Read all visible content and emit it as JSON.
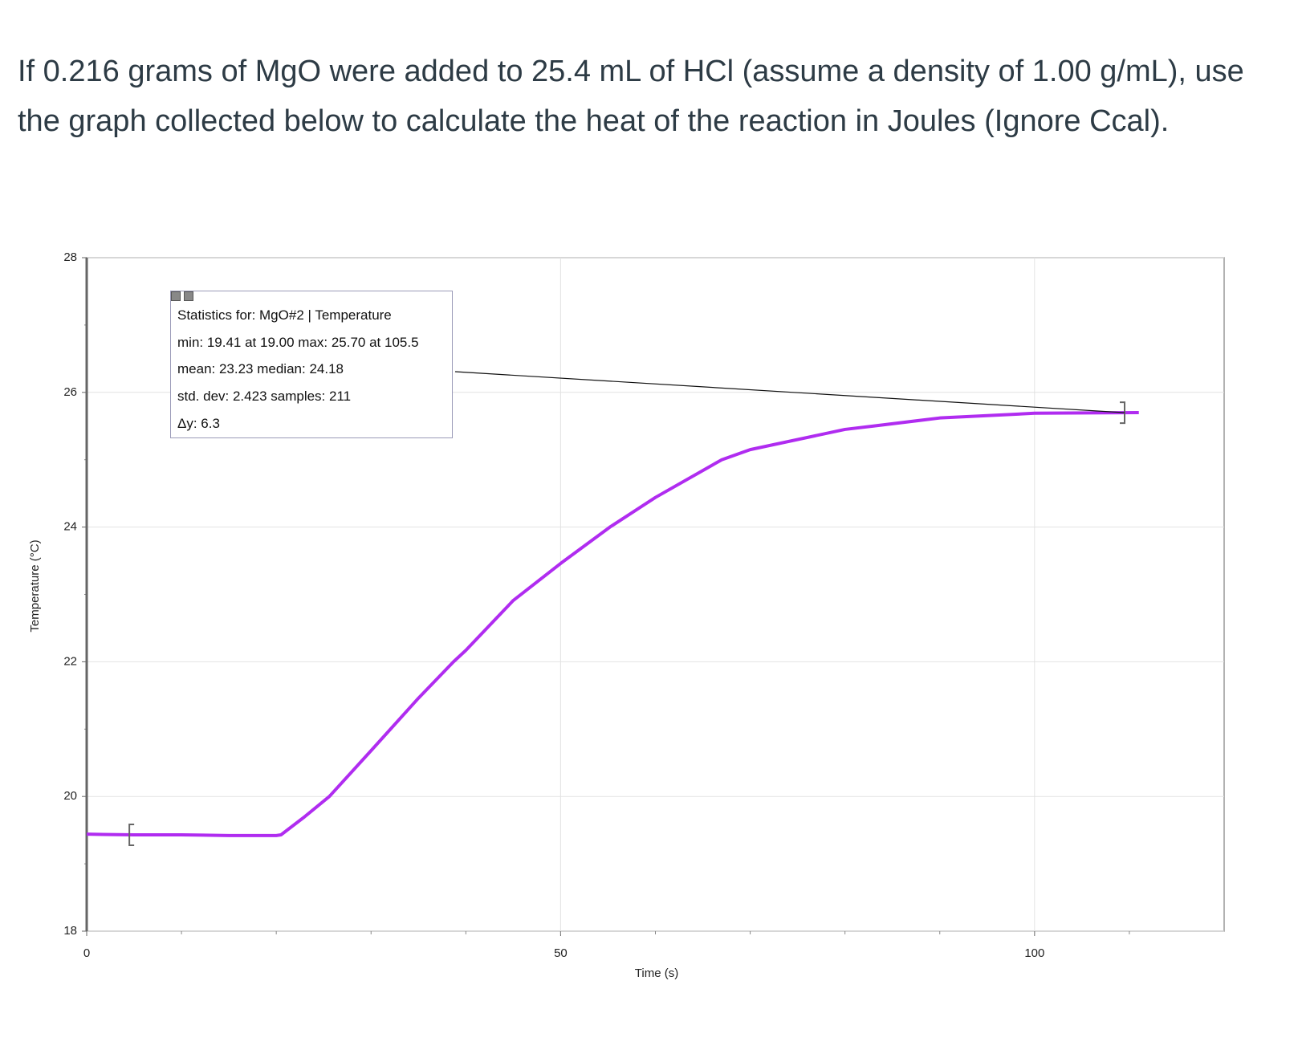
{
  "question": "If 0.216 grams of MgO were added to 25.4 mL of HCl (assume a density of 1.00 g/mL), use the graph collected below to calculate the heat of the reaction in Joules (Ignore Ccal).",
  "chart_data": {
    "type": "line",
    "xlabel": "Time (s)",
    "ylabel": "Temperature (°C)",
    "x": [
      0,
      5,
      10,
      15,
      20,
      20.5,
      23,
      25.6,
      30,
      35,
      38.7,
      40,
      45,
      50,
      55.2,
      60,
      67,
      70,
      80,
      83,
      90,
      100,
      111
    ],
    "series": [
      {
        "name": "MgO#2 | Temperature",
        "color": "#b02cf0",
        "values": [
          19.44,
          19.43,
          19.43,
          19.42,
          19.42,
          19.43,
          19.7,
          20.0,
          20.68,
          21.46,
          22.0,
          22.17,
          22.91,
          23.46,
          24.0,
          24.44,
          25.0,
          25.15,
          25.45,
          25.5,
          25.62,
          25.69,
          25.7
        ]
      }
    ],
    "xlim": [
      0,
      120
    ],
    "ylim": [
      18,
      28
    ],
    "xticks": [
      0,
      50,
      100
    ],
    "yticks": [
      18,
      20,
      22,
      24,
      26,
      28
    ],
    "grid": true,
    "selection": {
      "start": 4.5,
      "end": 109.5
    },
    "stats": {
      "lines": [
        "Statistics for: MgO#2 | Temperature",
        "min: 19.41 at 19.00 max: 25.70 at 105.5",
        "mean: 23.23 median: 24.18",
        "std. dev: 2.423 samples: 211",
        "Δy: 6.3"
      ]
    }
  }
}
